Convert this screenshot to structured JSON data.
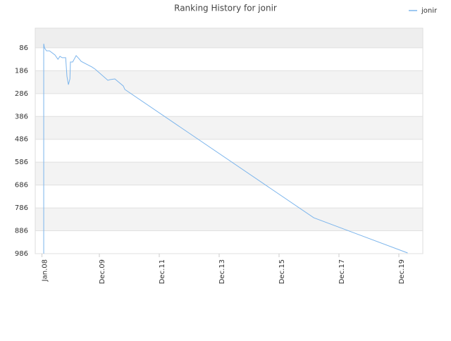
{
  "chart_data": {
    "type": "line",
    "title": "Ranking History for jonir",
    "x": [
      0.7,
      0.7,
      1.0,
      1.8,
      3.0,
      5.2,
      6.4,
      7.2,
      8.1,
      9.5,
      10.0,
      10.6,
      11.2,
      11.4,
      12.3,
      13.7,
      14.8,
      15.7,
      19.9,
      21.3,
      26.4,
      27.3,
      29.2,
      32.6,
      33.2,
      108.9,
      146.5
    ],
    "series": [
      {
        "name": "jonir",
        "color": "#7cb5ec",
        "values": [
          986,
          68,
          86,
          99,
          99,
          117,
          136,
          123,
          129,
          129,
          210,
          247,
          222,
          148,
          148,
          120,
          133,
          145,
          169,
          179,
          228,
          225,
          222,
          253,
          268,
          829,
          983
        ]
      }
    ],
    "xlim": [
      -2.7,
      152.6
    ],
    "xticks": [
      {
        "value": 0,
        "label": "Jan.08"
      },
      {
        "value": 23,
        "label": "Dec.09"
      },
      {
        "value": 47,
        "label": "Dec.11"
      },
      {
        "value": 71,
        "label": "Dec.13"
      },
      {
        "value": 95,
        "label": "Dec.15"
      },
      {
        "value": 119,
        "label": "Dec.17"
      },
      {
        "value": 143,
        "label": "Dec.19"
      }
    ],
    "ylim": [
      986,
      0
    ],
    "yticks": [
      86,
      186,
      286,
      386,
      486,
      586,
      686,
      786,
      886,
      986
    ],
    "grid": true,
    "legend": "top-right"
  }
}
